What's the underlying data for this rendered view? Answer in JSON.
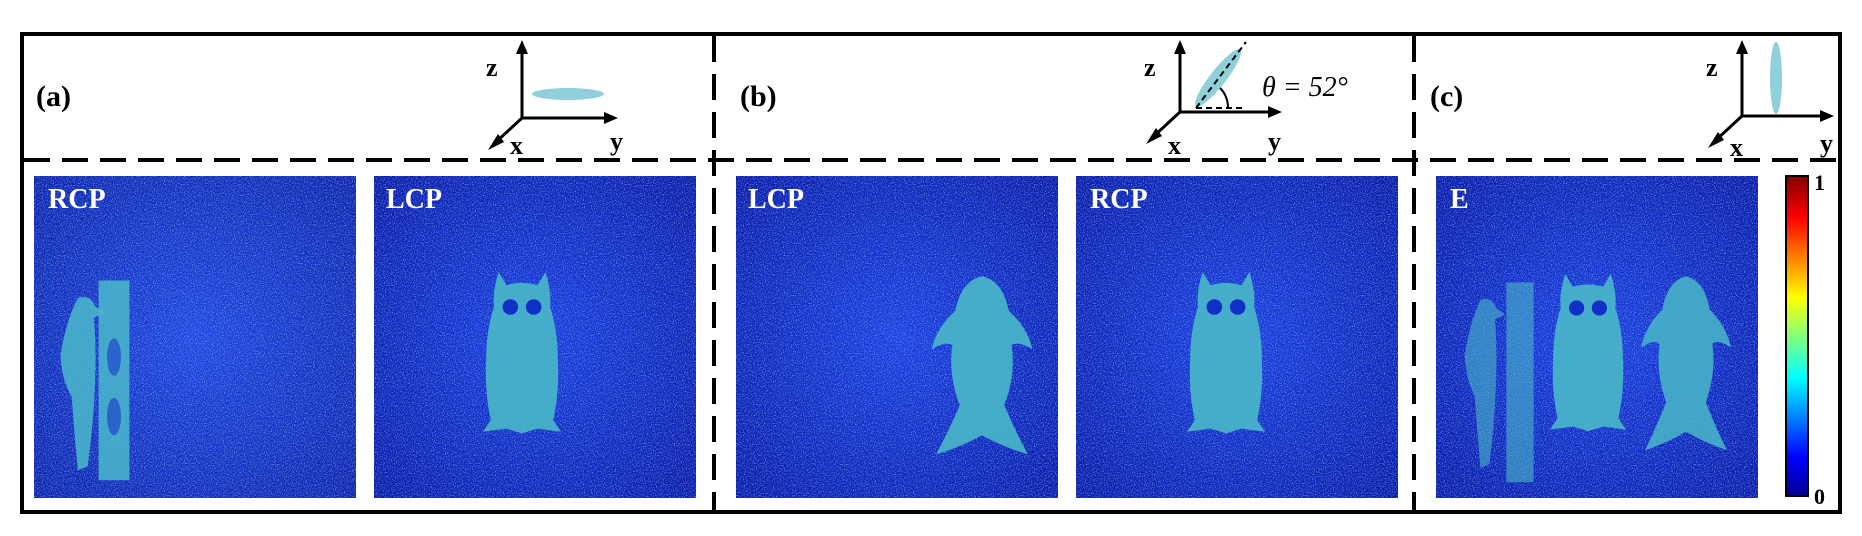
{
  "panels": [
    {
      "label": "(a)",
      "axes": {
        "z": "z",
        "x": "x",
        "y": "y"
      },
      "crystal_orientation": "horizontal",
      "images": [
        {
          "label": "RCP",
          "content": "woodpecker"
        },
        {
          "label": "LCP",
          "content": "owl"
        }
      ]
    },
    {
      "label": "(b)",
      "axes": {
        "z": "z",
        "x": "x",
        "y": "y"
      },
      "crystal_orientation": "tilted",
      "angle_label": "θ = 52°",
      "images": [
        {
          "label": "LCP",
          "content": "fish"
        },
        {
          "label": "RCP",
          "content": "owl"
        }
      ]
    },
    {
      "label": "(c)",
      "axes": {
        "z": "z",
        "x": "x",
        "y": "y"
      },
      "crystal_orientation": "vertical",
      "images": [
        {
          "label": "E",
          "content": "woodpecker-owl-fish"
        }
      ]
    }
  ],
  "colorbar": {
    "max_label": "1",
    "min_label": "0",
    "colormap": [
      "#00008f",
      "#0000ff",
      "#00ffff",
      "#ffff00",
      "#ff0000",
      "#800000"
    ]
  },
  "colors": {
    "image_background": "#1230c8",
    "speckle": "#2f6df2",
    "object_fill": "#49b8c8",
    "crystal": "#8fd0da"
  }
}
